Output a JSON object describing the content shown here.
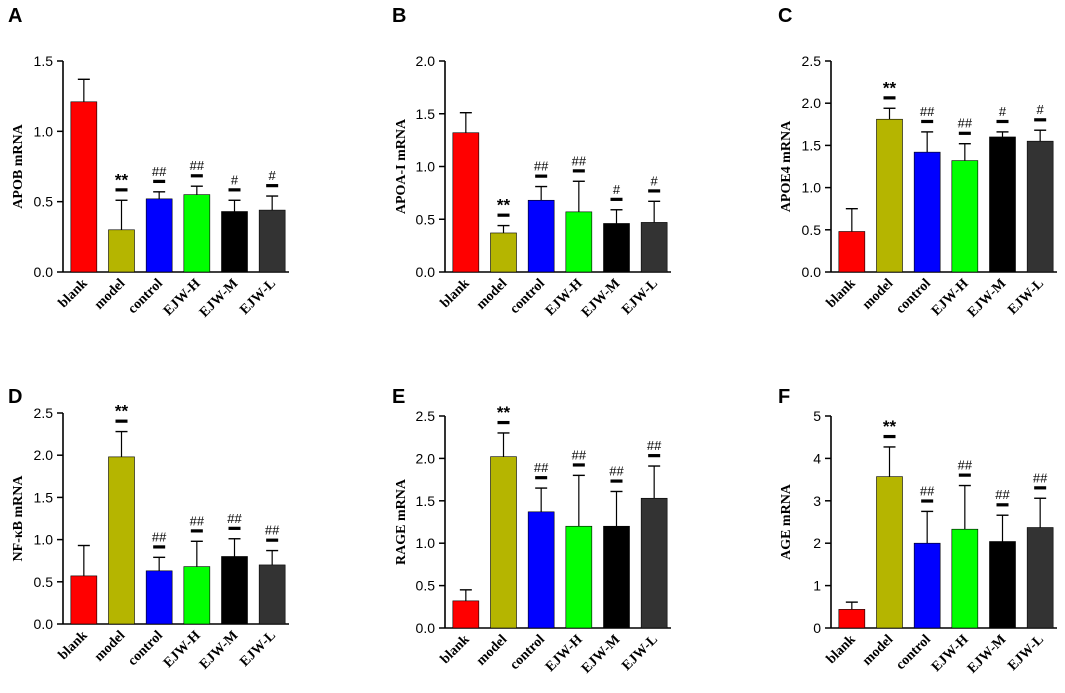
{
  "figure": {
    "category_labels": [
      "blank",
      "model",
      "control",
      "EJW-H",
      "EJW-M",
      "EJW-L"
    ],
    "bar_colors": [
      "#ff0000",
      "#b5b500",
      "#0000ff",
      "#00ff00",
      "#000000",
      "#333333"
    ]
  },
  "chart_data": [
    {
      "panel": "A",
      "type": "bar",
      "ylabel": "APOB mRNA",
      "categories": [
        "blank",
        "model",
        "control",
        "EJW-H",
        "EJW-M",
        "EJW-L"
      ],
      "values": [
        1.21,
        0.3,
        0.52,
        0.55,
        0.43,
        0.44
      ],
      "errors": [
        0.16,
        0.21,
        0.05,
        0.06,
        0.08,
        0.1
      ],
      "sig": [
        "",
        "**",
        "##",
        "##",
        "#",
        "#"
      ],
      "ylim": [
        0,
        1.5
      ],
      "yticks": [
        "0.0",
        "0.5",
        "1.0",
        "1.5"
      ]
    },
    {
      "panel": "B",
      "type": "bar",
      "ylabel": "APOA-I mRNA",
      "categories": [
        "blank",
        "model",
        "control",
        "EJW-H",
        "EJW-M",
        "EJW-L"
      ],
      "values": [
        1.32,
        0.37,
        0.68,
        0.57,
        0.46,
        0.47
      ],
      "errors": [
        0.19,
        0.07,
        0.13,
        0.29,
        0.13,
        0.2
      ],
      "sig": [
        "",
        "**",
        "##",
        "##",
        "#",
        "#"
      ],
      "ylim": [
        0,
        2.0
      ],
      "yticks": [
        "0.0",
        "0.5",
        "1.0",
        "1.5",
        "2.0"
      ]
    },
    {
      "panel": "C",
      "type": "bar",
      "ylabel": "APOE4 mRNA",
      "categories": [
        "blank",
        "model",
        "control",
        "EJW-H",
        "EJW-M",
        "EJW-L"
      ],
      "values": [
        0.48,
        1.81,
        1.42,
        1.32,
        1.6,
        1.55
      ],
      "errors": [
        0.27,
        0.13,
        0.24,
        0.2,
        0.06,
        0.13
      ],
      "sig": [
        "",
        "**",
        "##",
        "##",
        "#",
        "#"
      ],
      "ylim": [
        0,
        2.5
      ],
      "yticks": [
        "0.0",
        "0.5",
        "1.0",
        "1.5",
        "2.0",
        "2.5"
      ]
    },
    {
      "panel": "D",
      "type": "bar",
      "ylabel": "NF-κB mRNA",
      "categories": [
        "blank",
        "model",
        "control",
        "EJW-H",
        "EJW-M",
        "EJW-L"
      ],
      "values": [
        0.57,
        1.98,
        0.63,
        0.68,
        0.8,
        0.7
      ],
      "errors": [
        0.36,
        0.3,
        0.16,
        0.3,
        0.21,
        0.17
      ],
      "sig": [
        "",
        "**",
        "##",
        "##",
        "##",
        "##"
      ],
      "ylim": [
        0,
        2.5
      ],
      "yticks": [
        "0.0",
        "0.5",
        "1.0",
        "1.5",
        "2.0",
        "2.5"
      ]
    },
    {
      "panel": "E",
      "type": "bar",
      "ylabel": "RAGE mRNA",
      "categories": [
        "blank",
        "model",
        "control",
        "EJW-H",
        "EJW-M",
        "EJW-L"
      ],
      "values": [
        0.32,
        2.02,
        1.37,
        1.2,
        1.2,
        1.53
      ],
      "errors": [
        0.13,
        0.28,
        0.28,
        0.6,
        0.41,
        0.38
      ],
      "sig": [
        "",
        "**",
        "##",
        "##",
        "##",
        "##"
      ],
      "ylim": [
        0,
        2.5
      ],
      "yticks": [
        "0.0",
        "0.5",
        "1.0",
        "1.5",
        "2.0",
        "2.5"
      ]
    },
    {
      "panel": "F",
      "type": "bar",
      "ylabel": "AGE mRNA",
      "categories": [
        "blank",
        "model",
        "control",
        "EJW-H",
        "EJW-M",
        "EJW-L"
      ],
      "values": [
        0.44,
        3.57,
        2.0,
        2.33,
        2.04,
        2.37
      ],
      "errors": [
        0.17,
        0.7,
        0.75,
        1.03,
        0.62,
        0.69
      ],
      "sig": [
        "",
        "**",
        "##",
        "##",
        "##",
        "##"
      ],
      "ylim": [
        0,
        5
      ],
      "yticks": [
        "0",
        "1",
        "2",
        "3",
        "4",
        "5"
      ]
    }
  ]
}
